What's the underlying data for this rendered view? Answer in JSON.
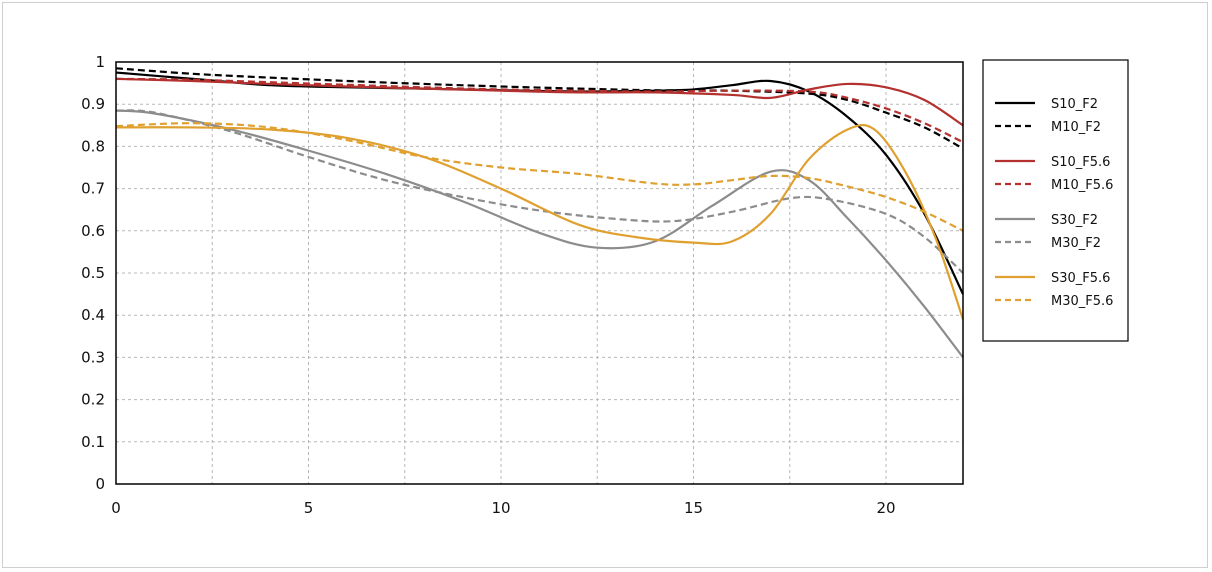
{
  "chart_data": {
    "type": "line",
    "title": "",
    "xlabel": "",
    "ylabel": "",
    "xlim": [
      0,
      22
    ],
    "ylim": [
      0,
      1
    ],
    "x_ticks": [
      "0",
      "5",
      "10",
      "15",
      "20"
    ],
    "x_tick_values": [
      0,
      5,
      10,
      15,
      20
    ],
    "y_ticks": [
      "0",
      "0.1",
      "0.2",
      "0.3",
      "0.4",
      "0.5",
      "0.6",
      "0.7",
      "0.8",
      "0.9",
      "1"
    ],
    "y_tick_values": [
      0,
      0.1,
      0.2,
      0.3,
      0.4,
      0.5,
      0.6,
      0.7,
      0.8,
      0.9,
      1
    ],
    "grid": true,
    "legend_position": "right",
    "series": [
      {
        "name": "S10_F2",
        "color": "#000000",
        "dash": "solid",
        "x": [
          0,
          2,
          4,
          6,
          8,
          10,
          12,
          14,
          15,
          16,
          17,
          18,
          19,
          20,
          21,
          22
        ],
        "y": [
          0.975,
          0.96,
          0.945,
          0.94,
          0.937,
          0.933,
          0.93,
          0.932,
          0.935,
          0.945,
          0.955,
          0.93,
          0.87,
          0.78,
          0.64,
          0.45
        ]
      },
      {
        "name": "M10_F2",
        "color": "#000000",
        "dash": "dashed",
        "x": [
          0,
          2,
          4,
          6,
          8,
          10,
          12,
          14,
          16,
          18,
          19,
          20,
          21,
          22
        ],
        "y": [
          0.985,
          0.972,
          0.963,
          0.955,
          0.948,
          0.942,
          0.937,
          0.933,
          0.932,
          0.925,
          0.91,
          0.88,
          0.845,
          0.795
        ]
      },
      {
        "name": "S10_F5.6",
        "color": "#b3312e",
        "dash": "solid",
        "x": [
          0,
          2,
          4,
          6,
          8,
          10,
          12,
          14,
          16,
          17,
          18,
          19,
          20,
          21,
          22
        ],
        "y": [
          0.96,
          0.955,
          0.948,
          0.942,
          0.937,
          0.932,
          0.928,
          0.928,
          0.922,
          0.915,
          0.935,
          0.948,
          0.94,
          0.91,
          0.85
        ]
      },
      {
        "name": "M10_F5.6",
        "color": "#b3312e",
        "dash": "dashed",
        "x": [
          0,
          2,
          4,
          6,
          8,
          10,
          12,
          14,
          16,
          18,
          19,
          20,
          21,
          22
        ],
        "y": [
          0.96,
          0.958,
          0.952,
          0.946,
          0.94,
          0.935,
          0.932,
          0.93,
          0.932,
          0.93,
          0.915,
          0.89,
          0.855,
          0.81
        ]
      },
      {
        "name": "S30_F2",
        "color": "#8c8c8c",
        "dash": "solid",
        "x": [
          0,
          1,
          3,
          5,
          7,
          9,
          11,
          12.5,
          14,
          15.5,
          17,
          18,
          19,
          20,
          21,
          22
        ],
        "y": [
          0.885,
          0.878,
          0.84,
          0.79,
          0.735,
          0.67,
          0.595,
          0.56,
          0.575,
          0.66,
          0.74,
          0.72,
          0.63,
          0.53,
          0.42,
          0.3
        ]
      },
      {
        "name": "M30_F2",
        "color": "#8c8c8c",
        "dash": "dashed",
        "x": [
          0,
          1,
          3,
          5,
          7,
          9,
          11,
          13,
          14.5,
          16,
          17.5,
          18.5,
          20,
          21,
          22
        ],
        "y": [
          0.885,
          0.88,
          0.835,
          0.775,
          0.72,
          0.68,
          0.648,
          0.628,
          0.623,
          0.645,
          0.677,
          0.675,
          0.64,
          0.585,
          0.5
        ]
      },
      {
        "name": "S30_F5.6",
        "color": "#e0a030",
        "dash": "solid",
        "x": [
          0,
          2,
          4,
          6,
          8,
          10,
          12,
          13.5,
          15,
          16,
          17,
          18,
          19,
          19.7,
          20.5,
          21.3,
          22
        ],
        "y": [
          0.845,
          0.845,
          0.84,
          0.82,
          0.775,
          0.7,
          0.615,
          0.585,
          0.572,
          0.575,
          0.64,
          0.77,
          0.84,
          0.84,
          0.74,
          0.58,
          0.39
        ]
      },
      {
        "name": "M30_F5.6",
        "color": "#e0a030",
        "dash": "dashed",
        "x": [
          0,
          2,
          4,
          6,
          8,
          10,
          12,
          14,
          15,
          16,
          17,
          18,
          19,
          20,
          21,
          22
        ],
        "y": [
          0.848,
          0.855,
          0.845,
          0.815,
          0.775,
          0.75,
          0.735,
          0.712,
          0.71,
          0.72,
          0.73,
          0.725,
          0.705,
          0.68,
          0.645,
          0.6
        ]
      }
    ]
  }
}
